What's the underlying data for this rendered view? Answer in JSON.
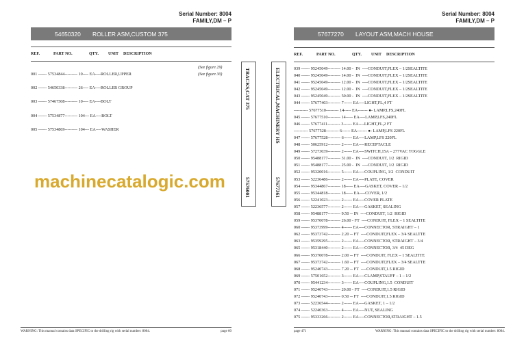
{
  "left": {
    "serial": "Serial Number: 8004",
    "family": "FAMILY,DM – P",
    "part_no": "54650320",
    "title": "ROLLER ASM,CUSTOM 375",
    "headers": {
      "ref": "REF.",
      "part": "PART NO.",
      "qty": "QTY.",
      "unit": "UNIT",
      "desc": "DESCRIPTION"
    },
    "rows": [
      "001 ------ 57534844--------- 10---- EA----ROLLER,UPPER",
      "002 ------ 54650338--------- 26---- EA----ROLLER GROUP",
      "003 ------ 57467508--------- 10---- EA----BOLT",
      "004 ------ 57534877--------- 104--- EA----BOLT",
      "005 ------ 57534869--------- 104--- EA----WASHER"
    ],
    "figs": [
      "(See figure 29)",
      "(See figure 30)"
    ],
    "footer_warning": "WARNING:  This manual contains data SPECIFIC to the drilling rig with serial number: 8004.",
    "page": "page 60"
  },
  "tabs": [
    {
      "title": "TRACKS,CAT 375",
      "num": "57576001"
    },
    {
      "title": "ELECTRICAL,MACHINERY HS",
      "num": "57677361"
    }
  ],
  "right": {
    "serial": "Serial Number: 8004",
    "family": "FAMILY,DM – P",
    "part_no": "57677270",
    "title": "LAYOUT ASM,MACH HOUSE",
    "headers": {
      "ref": "REF.",
      "part": "PART NO.",
      "qty": "QTY.",
      "unit": "UNIT",
      "desc": "DESCRIPTION"
    },
    "rows": [
      "039 ------ 95245049--------- 14.00 -  IN  ----CONDUIT,FLEX – 1/2SEALTITE",
      "040 ------ 95245049--------- 14.00 -  IN  ----CONDUIT,FLEX – 1/2SEALTITE",
      "041 ------ 95245049--------- 12.00 -  IN  ----CONDUIT,FLEX – 1/2SEALTITE",
      "042 ------ 95245049--------- 12.00 -  IN  ----CONDUIT,FLEX – 1/2SEALTITE",
      "043 ------ 95245049--------- 50.00 -  IN  ----CONDUIT,FLEX – 1/2SEALTITE",
      "044 ------ 57677403--------- 7------ EA----LIGHT,FL,4 FT",
      "---------- 57677510--------- 14----- EA------- ●- LAMP,LFS,240FL",
      "045 ------ 57677510--------- 14----- EA----LAMP,LFS,240FL",
      "046 ------ 57677411--------- 3------ EA----LIGHT,FL,2 FT",
      "---------- 57677528--------- 6------ EA------- ●- LAMP,LFS 220FL",
      "047 ------ 57677528--------- 6------ EA----LAMP,LFS 220FL",
      "048 ------ 50625912--------- 2------ EA----RECEPTACLE",
      "049 ------ 57273039--------- 2------ EA----SWITCH,15A – 277VAC TOGGLE",
      "050 ------ 95488177--------- 31.00 -  IN  ----CONDUIT, 1/2  RIGID",
      "051 ------ 95488177--------- 25.00 -  IN  ----CONDUIT, 1/2  RIGID",
      "052 ------ 95320016--------- 5------ EA----COUPLING, 1/2  CONDUIT",
      "053 ------ 52236486--------- 2------ EA----PLATE, COVER",
      "054 ------ 95344867--------- 18----- EA----GASKET, COVER – 1/2",
      "055 ------ 95344818--------- 18----- EA----COVER, 1/2",
      "056 ------ 52241023--------- 2------ EA----COVER PLATE",
      "057 ------ 52236577--------- 2------ EA----GASKET, SEALING",
      "058 ------ 95488177--------- 9.50 -- IN  ----CONDUIT, 1/2  RIGID",
      "059 ------ 95370078--------- 26.00 - FT  ----CONDUIT, FLEX – 1 SEALTITE",
      "060 ------ 95373999--------- 4------ EA----CONNECTOR, STRAIGHT – 1",
      "062 ------ 95373742--------- 2.20 -- FT  ----CONDUIT,FLEX – 3/4 SEALTTE",
      "063 ------ 95359295--------- 2------ EA----CONNECTOR, STRAIGHT – 3/4",
      "065 ------ 95318440--------- 2------ EA----CONNECTOR, 3/4  45 DEG",
      "066 ------ 95370078--------- 2.00 -- FT  ----CONDUIT, FLEX – 1 SEALTITE",
      "067 ------ 95373742--------- 1.60 -- FT  ----CONDUIT,FLEX – 3/4 SEALTTE",
      "068 ------ 95240743--------- 7.20 -- FT  ----CONDUIT,1.5 RIGID",
      "069 ------ 57501652--------- 3------ EA----CLAMP,STAUFF – 1 – 1/2",
      "070 ------ 95441234--------- 3------ EA----COUPLING,1.5  CONDUIT",
      "071 ------ 95240743--------- 20.00 - FT  ----CONDUIT,1.5 RIGID",
      "072 ------ 95240743--------- 0.50 -- FT  ----CONDUIT,1.5 RIGID",
      "073 ------ 52236544--------- 2------ EA----GASKET, 1 – 1/2",
      "074 ------ 52240363--------- 4------ EA----NUT, SEALING",
      "075 ------ 95333266--------- 2------ EA----CONNECTOR,STRAIGHT – 1.5"
    ],
    "footer_warning": "WARNING:  This manual contains data SPECIFIC to the drilling rig with serial number: 8004.",
    "page": "page 471"
  },
  "watermark": "machinecatalogic.com"
}
